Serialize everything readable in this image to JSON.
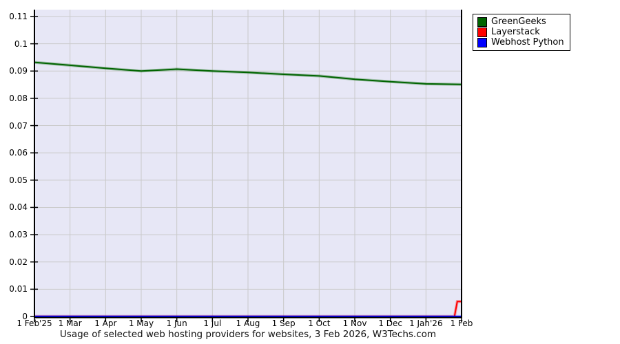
{
  "chart_data": {
    "type": "line",
    "title": "Usage of selected web hosting providers for websites, 3 Feb 2026, W3Techs.com",
    "x_labels": [
      "1 Feb'25",
      "1 Mar",
      "1 Apr",
      "1 May",
      "1 Jun",
      "1 Jul",
      "1 Aug",
      "1 Sep",
      "1 Oct",
      "1 Nov",
      "1 Dec",
      "1 Jan'26",
      "1 Feb"
    ],
    "y_ticks": [
      0,
      0.01,
      0.02,
      0.03,
      0.04,
      0.05,
      0.06,
      0.07,
      0.08,
      0.09,
      0.1,
      0.11
    ],
    "y_tick_labels": [
      "0",
      "0.01",
      "0.02",
      "0.03",
      "0.04",
      "0.05",
      "0.06",
      "0.07",
      "0.08",
      "0.09",
      "0.1",
      "0.11"
    ],
    "ylim": [
      0,
      0.11
    ],
    "grid": true,
    "legend_position": "top-right",
    "series": [
      {
        "name": "GreenGeeks",
        "color": "#006400",
        "values": [
          0.0932,
          0.0921,
          0.091,
          0.09,
          0.0907,
          0.09,
          0.0895,
          0.0888,
          0.0882,
          0.087,
          0.0861,
          0.0853,
          0.0851
        ]
      },
      {
        "name": "Layerstack",
        "color": "#ff0000",
        "x": [
          0,
          1,
          2,
          3,
          4,
          5,
          6,
          7,
          8,
          9,
          10,
          11,
          11.8,
          11.88,
          12
        ],
        "values": [
          0,
          0,
          0,
          0,
          0,
          0,
          0,
          0,
          0,
          0,
          0,
          0,
          0,
          0.0055,
          0.0055
        ]
      },
      {
        "name": "Webhost Python",
        "color": "#0000ff",
        "values": [
          0,
          0,
          0,
          0,
          0,
          0,
          0,
          0,
          0,
          0,
          0,
          0,
          0
        ]
      }
    ]
  },
  "colors": {
    "plot_bg": "#e7e7f6",
    "grid": "#c9c9c9",
    "axis": "#000000"
  }
}
